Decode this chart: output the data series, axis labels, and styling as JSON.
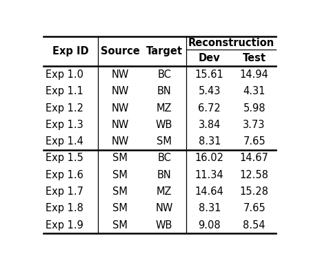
{
  "header_row1": [
    "Exp ID",
    "Source",
    "Target",
    "Reconstruction"
  ],
  "header_row2": [
    "",
    "",
    "",
    "Dev",
    "Test"
  ],
  "rows": [
    [
      "Exp 1.0",
      "NW",
      "BC",
      "15.61",
      "14.94"
    ],
    [
      "Exp 1.1",
      "NW",
      "BN",
      "5.43",
      "4.31"
    ],
    [
      "Exp 1.2",
      "NW",
      "MZ",
      "6.72",
      "5.98"
    ],
    [
      "Exp 1.3",
      "NW",
      "WB",
      "3.84",
      "3.73"
    ],
    [
      "Exp 1.4",
      "NW",
      "SM",
      "8.31",
      "7.65"
    ],
    [
      "Exp 1.5",
      "SM",
      "BC",
      "16.02",
      "14.67"
    ],
    [
      "Exp 1.6",
      "SM",
      "BN",
      "11.34",
      "12.58"
    ],
    [
      "Exp 1.7",
      "SM",
      "MZ",
      "14.64",
      "15.28"
    ],
    [
      "Exp 1.8",
      "SM",
      "NW",
      "8.31",
      "7.65"
    ],
    [
      "Exp 1.9",
      "SM",
      "WB",
      "9.08",
      "8.54"
    ]
  ],
  "background_color": "#ffffff",
  "text_color": "#000000",
  "fontsize": 10.5,
  "header_fontsize": 10.5,
  "figsize": [
    4.48,
    3.88
  ],
  "dpi": 100
}
